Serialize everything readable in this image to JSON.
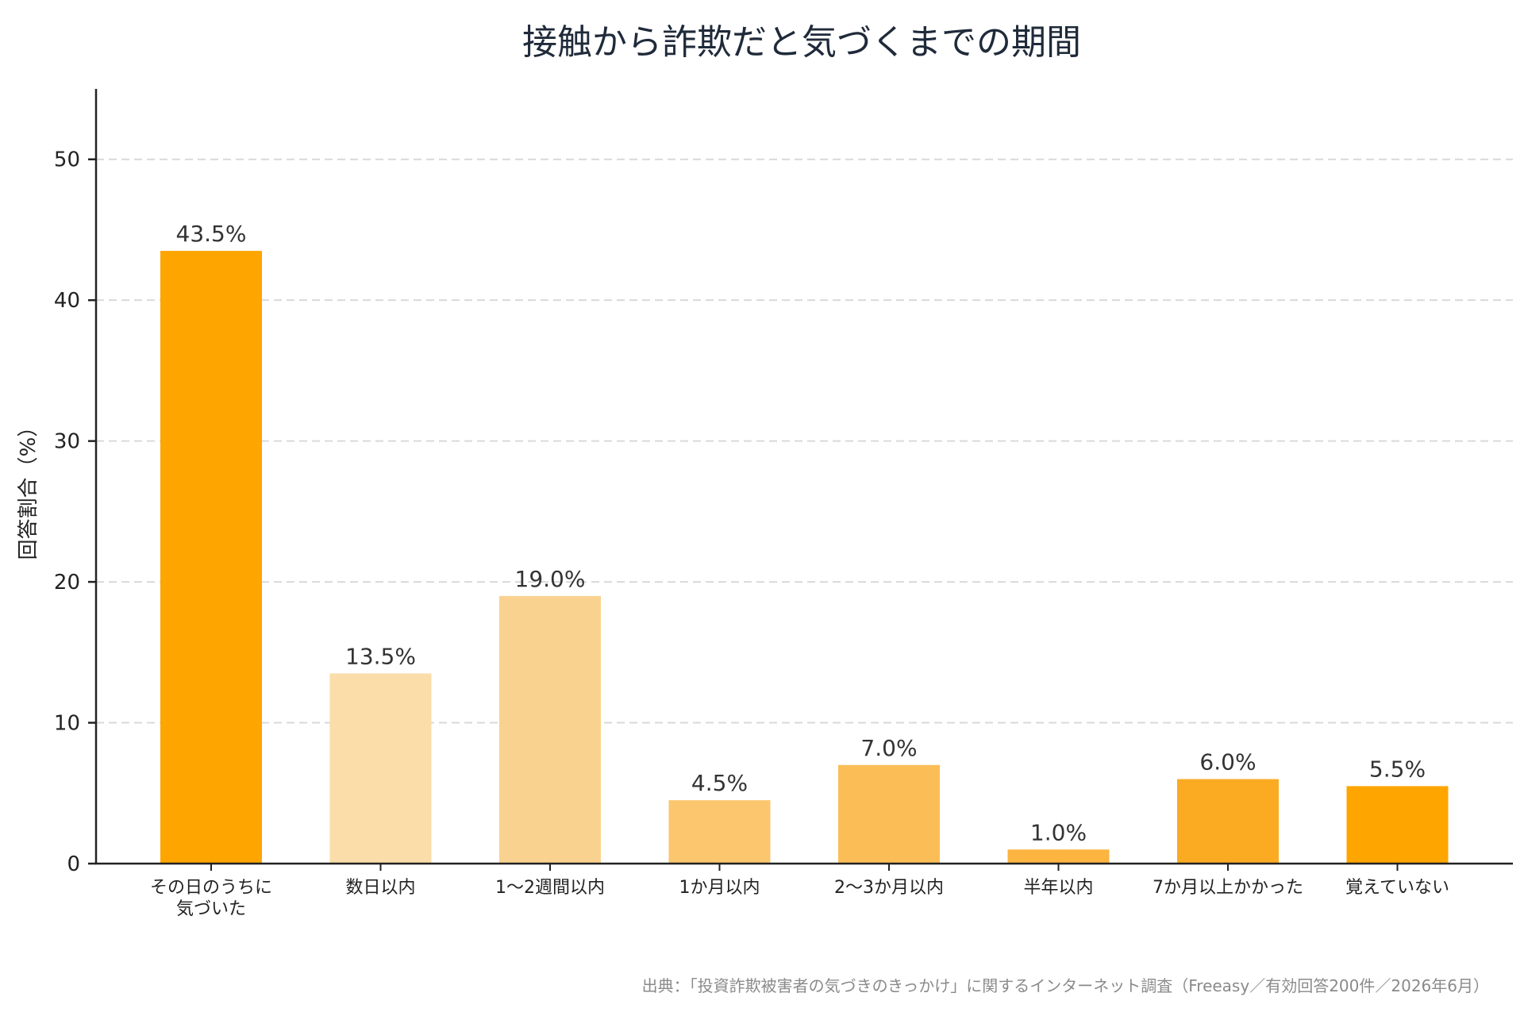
{
  "chart_data": {
    "type": "bar",
    "title": "接触から詐欺だと気づくまでの期間",
    "ylabel": "回答割合（%）",
    "xlabel": "",
    "ylim": [
      0,
      55
    ],
    "yticks": [
      0,
      10,
      20,
      30,
      40,
      50
    ],
    "grid": true,
    "categories": [
      [
        "その日のうちに",
        "気づいた"
      ],
      [
        "数日以内"
      ],
      [
        "1〜2週間以内"
      ],
      [
        "1か月以内"
      ],
      [
        "2〜3か月以内"
      ],
      [
        "半年以内"
      ],
      [
        "7か月以上かかった"
      ],
      [
        "覚えていない"
      ]
    ],
    "values": [
      43.5,
      13.5,
      19.0,
      4.5,
      7.0,
      1.0,
      6.0,
      5.5
    ],
    "value_labels": [
      "43.5%",
      "13.5%",
      "19.0%",
      "4.5%",
      "7.0%",
      "1.0%",
      "6.0%",
      "5.5%"
    ],
    "colors": [
      "#FFA500",
      "#FADDA9",
      "#FAD28F",
      "#FBC66E",
      "#FBBE56",
      "#FBB540",
      "#FBAB22",
      "#FFA500"
    ],
    "source": "出典：「投資詐欺被害者の気づきのきっかけ」に関するインターネット調査（Freeasy／有効回答200件／2026年6月）"
  }
}
